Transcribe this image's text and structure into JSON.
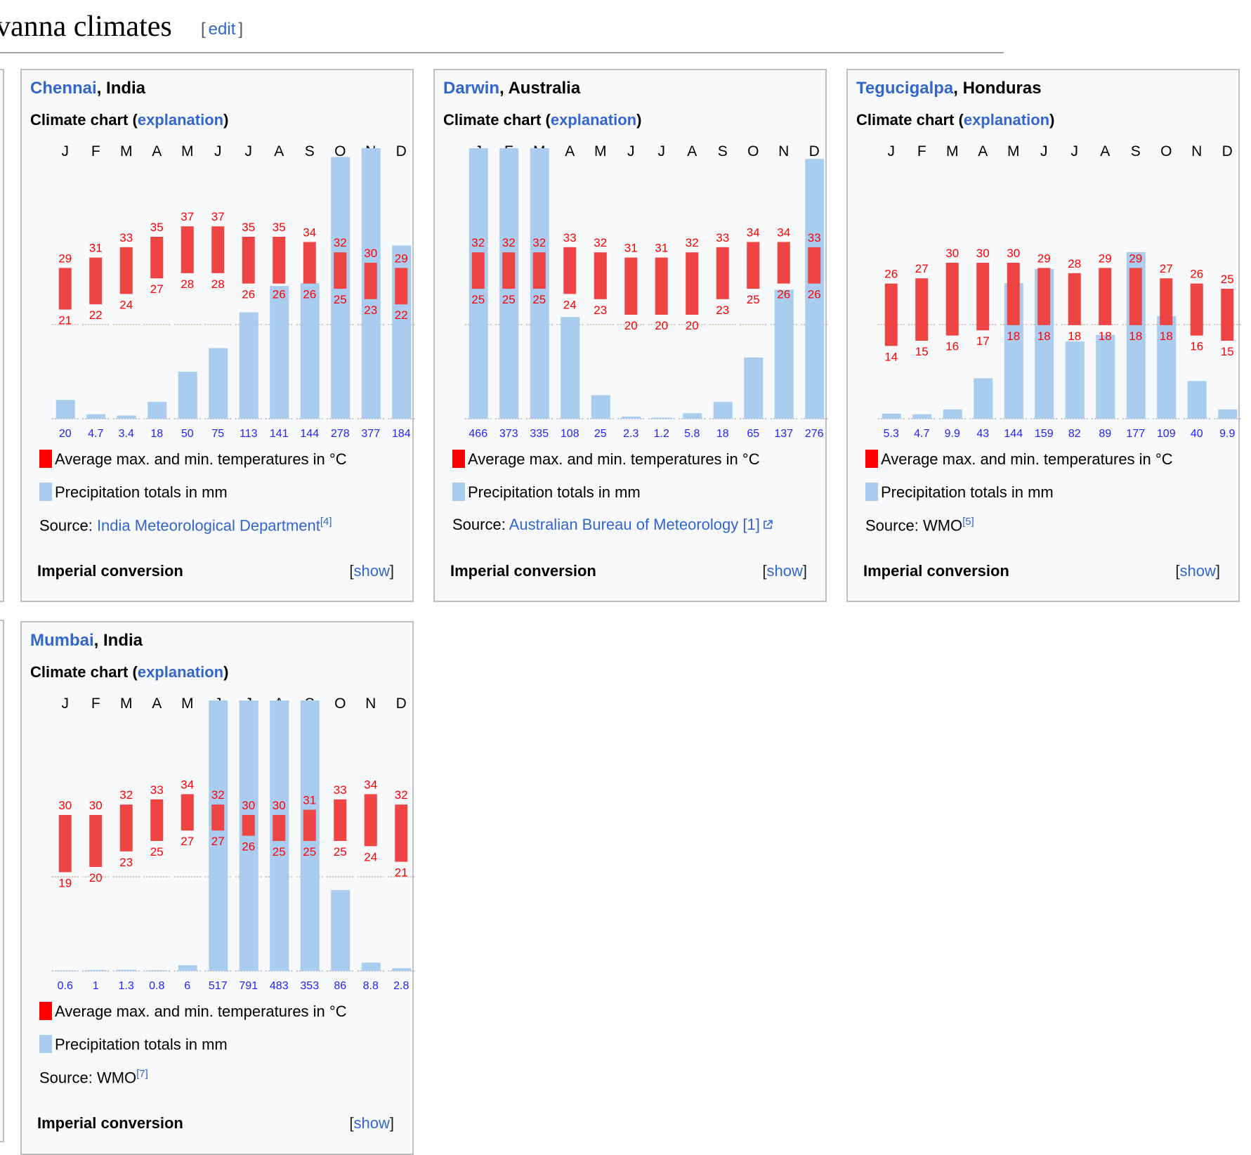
{
  "page": {
    "heading": "vanna climates",
    "edit_label": "edit"
  },
  "common": {
    "climate_chart_label": "Climate chart (",
    "explanation_label": "explanation",
    "close_paren": ")",
    "legend_temp": "Average max. and min. temperatures in °C",
    "legend_precip": "Precipitation totals in mm",
    "source_label": "Source: ",
    "imperial_label": "Imperial conversion",
    "show_label": "show",
    "months": [
      "J",
      "F",
      "M",
      "A",
      "M",
      "J",
      "J",
      "A",
      "S",
      "O",
      "N",
      "D"
    ],
    "colors": {
      "temp_bar": "#ee4444",
      "temp_text": "#ff0000",
      "precip_bar": "#aaccee",
      "precip_text": "#2222ff",
      "link": "#3366cc"
    }
  },
  "boxes": [
    {
      "city": "Chennai",
      "country": ", India",
      "source_text": "India Meteorological Department",
      "source_ref": "[4]",
      "source_is_link": true,
      "external": false
    },
    {
      "city": "Darwin",
      "country": ", Australia",
      "source_text": "Australian Bureau of Meteorology [1]",
      "source_ref": "",
      "source_is_link": true,
      "external": true
    },
    {
      "city": "Tegucigalpa",
      "country": ", Honduras",
      "source_text": "WMO",
      "source_ref": "[5]",
      "source_is_link": false,
      "external": false
    },
    {
      "city": "Mumbai",
      "country": ", India",
      "source_text": "WMO",
      "source_ref": "[7]",
      "source_is_link": false,
      "external": false
    }
  ],
  "chart_data": [
    {
      "type": "bar",
      "title": "Chennai, India",
      "categories": [
        "J",
        "F",
        "M",
        "A",
        "M",
        "J",
        "J",
        "A",
        "S",
        "O",
        "N",
        "D"
      ],
      "series": [
        {
          "name": "Average max. temperature (°C)",
          "values": [
            29,
            31,
            33,
            35,
            37,
            37,
            35,
            35,
            34,
            32,
            30,
            29
          ]
        },
        {
          "name": "Average min. temperature (°C)",
          "values": [
            21,
            22,
            24,
            27,
            28,
            28,
            26,
            26,
            26,
            25,
            23,
            22
          ]
        },
        {
          "name": "Precipitation totals (mm)",
          "values": [
            20,
            4.7,
            3.4,
            18,
            50,
            75,
            113,
            141,
            144,
            278,
            377,
            184
          ]
        }
      ],
      "legend": [
        "Average max. and min. temperatures in °C",
        "Precipitation totals in mm"
      ]
    },
    {
      "type": "bar",
      "title": "Darwin, Australia",
      "categories": [
        "J",
        "F",
        "M",
        "A",
        "M",
        "J",
        "J",
        "A",
        "S",
        "O",
        "N",
        "D"
      ],
      "series": [
        {
          "name": "Average max. temperature (°C)",
          "values": [
            32,
            32,
            32,
            33,
            32,
            31,
            31,
            32,
            33,
            34,
            34,
            33
          ]
        },
        {
          "name": "Average min. temperature (°C)",
          "values": [
            25,
            25,
            25,
            24,
            23,
            20,
            20,
            20,
            23,
            25,
            26,
            26
          ]
        },
        {
          "name": "Precipitation totals (mm)",
          "values": [
            466,
            373,
            335,
            108,
            25,
            2.3,
            1.2,
            5.8,
            18,
            65,
            137,
            276
          ]
        }
      ],
      "legend": [
        "Average max. and min. temperatures in °C",
        "Precipitation totals in mm"
      ]
    },
    {
      "type": "bar",
      "title": "Tegucigalpa, Honduras",
      "categories": [
        "J",
        "F",
        "M",
        "A",
        "M",
        "J",
        "J",
        "A",
        "S",
        "O",
        "N",
        "D"
      ],
      "series": [
        {
          "name": "Average max. temperature (°C)",
          "values": [
            26,
            27,
            30,
            30,
            30,
            29,
            28,
            29,
            29,
            27,
            26,
            25
          ]
        },
        {
          "name": "Average min. temperature (°C)",
          "values": [
            14,
            15,
            16,
            17,
            18,
            18,
            18,
            18,
            18,
            18,
            16,
            15
          ]
        },
        {
          "name": "Precipitation totals (mm)",
          "values": [
            5.3,
            4.7,
            9.9,
            43,
            144,
            159,
            82,
            89,
            177,
            109,
            40,
            9.9
          ]
        }
      ],
      "legend": [
        "Average max. and min. temperatures in °C",
        "Precipitation totals in mm"
      ]
    },
    {
      "type": "bar",
      "title": "Mumbai, India",
      "categories": [
        "J",
        "F",
        "M",
        "A",
        "M",
        "J",
        "J",
        "A",
        "S",
        "O",
        "N",
        "D"
      ],
      "series": [
        {
          "name": "Average max. temperature (°C)",
          "values": [
            30,
            30,
            32,
            33,
            34,
            32,
            30,
            30,
            31,
            33,
            34,
            32
          ]
        },
        {
          "name": "Average min. temperature (°C)",
          "values": [
            19,
            20,
            23,
            25,
            27,
            27,
            26,
            25,
            25,
            25,
            24,
            21
          ]
        },
        {
          "name": "Precipitation totals (mm)",
          "values": [
            0.6,
            1,
            1.3,
            0.8,
            6,
            517,
            791,
            483,
            353,
            86,
            8.8,
            2.8
          ]
        }
      ],
      "legend": [
        "Average max. and min. temperatures in °C",
        "Precipitation totals in mm"
      ]
    }
  ]
}
